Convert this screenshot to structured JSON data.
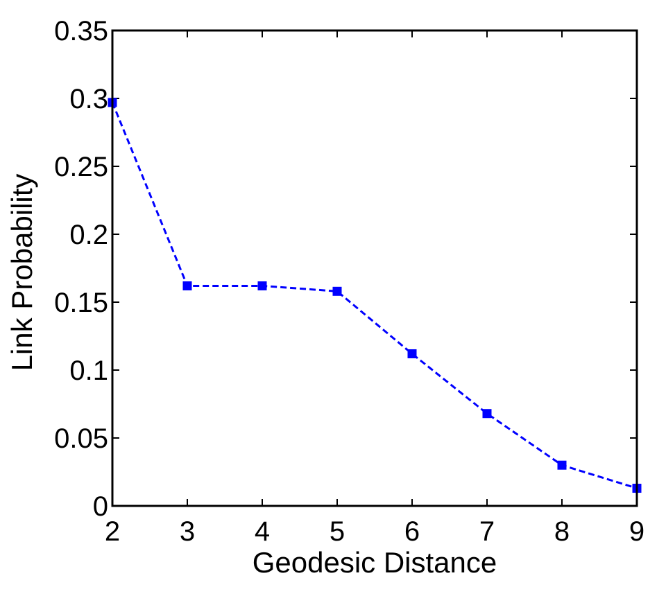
{
  "chart_data": {
    "type": "line",
    "title": "",
    "xlabel": "Geodesic Distance",
    "ylabel": "Link Probability",
    "xlim": [
      2,
      9
    ],
    "ylim": [
      0,
      0.35
    ],
    "x_ticks": [
      "2",
      "3",
      "4",
      "5",
      "6",
      "7",
      "8",
      "9"
    ],
    "y_ticks": [
      "0",
      "0.05",
      "0.1",
      "0.15",
      "0.2",
      "0.25",
      "0.3",
      "0.35"
    ],
    "grid": false,
    "series": [
      {
        "line_style": "dashed",
        "marker": "square",
        "color": "#0000ff",
        "x": [
          2,
          3,
          4,
          5,
          6,
          7,
          8,
          9
        ],
        "values": [
          0.297,
          0.162,
          0.162,
          0.158,
          0.112,
          0.068,
          0.03,
          0.013
        ]
      }
    ]
  }
}
